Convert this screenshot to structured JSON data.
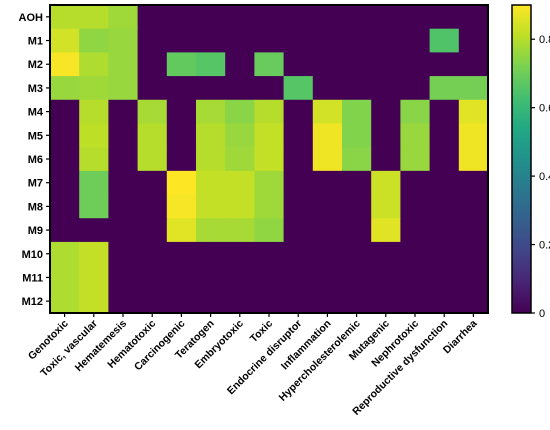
{
  "chart_data": {
    "type": "heatmap",
    "title": "",
    "xlabel": "",
    "ylabel": "",
    "rows": [
      "AOH",
      "M1",
      "M2",
      "M3",
      "M4",
      "M5",
      "M6",
      "M7",
      "M8",
      "M9",
      "M10",
      "M11",
      "M12"
    ],
    "columns": [
      "Genotoxic",
      "Toxic, vascular",
      "Hematemesis",
      "Hematotoxic",
      "Carcinogenic",
      "Teratogen",
      "Embryotoxic",
      "Toxic",
      "Endocrine disruptor",
      "Inflammation",
      "Hypercholesterolemic",
      "Mutagenic",
      "Nephrotoxic",
      "Reproductive dysfunction",
      "Diarrhea"
    ],
    "values": [
      [
        0.8,
        0.8,
        0.77,
        0,
        0,
        0,
        0,
        0,
        0,
        0,
        0,
        0,
        0,
        0,
        0
      ],
      [
        0.84,
        0.75,
        0.76,
        0,
        0,
        0,
        0,
        0,
        0,
        0,
        0,
        0,
        0,
        0.65,
        0
      ],
      [
        0.89,
        0.79,
        0.76,
        0,
        0.68,
        0.66,
        0,
        0.69,
        0,
        0,
        0,
        0,
        0,
        0,
        0
      ],
      [
        0.76,
        0.77,
        0.76,
        0,
        0,
        0,
        0,
        0,
        0.66,
        0,
        0,
        0,
        0,
        0.71,
        0.71
      ],
      [
        0,
        0.8,
        0,
        0.78,
        0,
        0.78,
        0.74,
        0.8,
        0,
        0.84,
        0.73,
        0,
        0.74,
        0,
        0.86
      ],
      [
        0,
        0.81,
        0,
        0.8,
        0,
        0.8,
        0.76,
        0.82,
        0,
        0.88,
        0.73,
        0,
        0.76,
        0,
        0.88
      ],
      [
        0,
        0.8,
        0,
        0.8,
        0,
        0.8,
        0.77,
        0.82,
        0,
        0.88,
        0.74,
        0,
        0.76,
        0,
        0.88
      ],
      [
        0,
        0.7,
        0,
        0,
        0.9,
        0.82,
        0.82,
        0.77,
        0,
        0,
        0,
        0.83,
        0,
        0,
        0
      ],
      [
        0,
        0.7,
        0,
        0,
        0.89,
        0.82,
        0.82,
        0.77,
        0,
        0,
        0,
        0.83,
        0,
        0,
        0
      ],
      [
        0,
        0,
        0,
        0,
        0.86,
        0.78,
        0.78,
        0.75,
        0,
        0,
        0,
        0.86,
        0,
        0,
        0
      ],
      [
        0.79,
        0.82,
        0,
        0,
        0,
        0,
        0,
        0,
        0,
        0,
        0,
        0,
        0,
        0,
        0
      ],
      [
        0.79,
        0.82,
        0,
        0,
        0,
        0,
        0,
        0,
        0,
        0,
        0,
        0,
        0,
        0,
        0
      ],
      [
        0.79,
        0.82,
        0,
        0,
        0,
        0,
        0,
        0,
        0,
        0,
        0,
        0,
        0,
        0,
        0
      ]
    ],
    "colorbar": {
      "colormap": "viridis",
      "vmin": 0,
      "vmax": 0.9,
      "ticks": [
        0,
        0.2,
        0.4,
        0.6,
        0.8
      ],
      "tick_labels": [
        "0",
        "0.2",
        "0.4",
        "0.6",
        "0.8"
      ]
    },
    "grid": false
  }
}
